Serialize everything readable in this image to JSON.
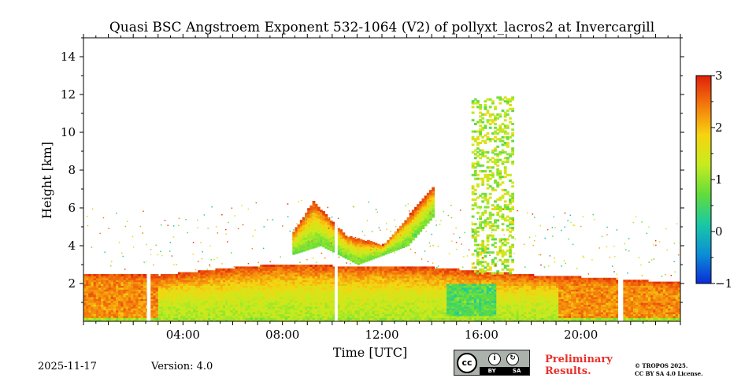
{
  "chart_data": {
    "type": "heatmap",
    "title": "Quasi BSC Angstroem Exponent 532-1064 (V2) of pollyxt_lacros2 at Invercargill",
    "xlabel": "Time [UTC]",
    "ylabel": "Height [km]",
    "xlim_hours": [
      0,
      24
    ],
    "ylim_km": [
      0,
      15
    ],
    "x_ticks": [
      {
        "hour": 4,
        "label": "04:00"
      },
      {
        "hour": 8,
        "label": "08:00"
      },
      {
        "hour": 12,
        "label": "12:00"
      },
      {
        "hour": 16,
        "label": "16:00"
      },
      {
        "hour": 20,
        "label": "20:00"
      }
    ],
    "y_ticks": [
      {
        "km": 2,
        "label": "2"
      },
      {
        "km": 4,
        "label": "4"
      },
      {
        "km": 6,
        "label": "6"
      },
      {
        "km": 8,
        "label": "8"
      },
      {
        "km": 10,
        "label": "10"
      },
      {
        "km": 12,
        "label": "12"
      },
      {
        "km": 14,
        "label": "14"
      }
    ],
    "colorbar": {
      "range": [
        -1,
        3
      ],
      "ticks": [
        {
          "value": 3,
          "label": "3"
        },
        {
          "value": 2,
          "label": "2"
        },
        {
          "value": 1,
          "label": "1"
        },
        {
          "value": 0,
          "label": "0"
        },
        {
          "value": -1,
          "label": "−1"
        }
      ],
      "colormap": "jet",
      "colors": [
        "#0a2bd8",
        "#0c8fd6",
        "#19c9a4",
        "#62dc3c",
        "#c6ec1e",
        "#f6d410",
        "#f47a0c",
        "#e0200a"
      ]
    },
    "data_gaps_hours": [
      [
        2.55,
        2.7
      ],
      [
        10.1,
        10.22
      ],
      [
        21.5,
        21.7
      ]
    ],
    "layers": [
      {
        "name": "boundary layer",
        "start_hour": 0,
        "end_hour": 24,
        "top_km_profile": [
          [
            0,
            2.5
          ],
          [
            3,
            2.4
          ],
          [
            6,
            2.8
          ],
          [
            8,
            3.0
          ],
          [
            10,
            2.9
          ],
          [
            12,
            2.9
          ],
          [
            14,
            2.8
          ],
          [
            16,
            2.6
          ],
          [
            18,
            2.4
          ],
          [
            20,
            2.3
          ],
          [
            24,
            2.0
          ]
        ],
        "values_low": 1.2,
        "values_high": 2.8
      },
      {
        "name": "elevated aerosol layer",
        "start_hour": 8.3,
        "end_hour": 14.0,
        "base_km_profile": [
          [
            8.3,
            3.5
          ],
          [
            9.5,
            4.0
          ],
          [
            11,
            3.0
          ],
          [
            13,
            4.0
          ],
          [
            14,
            5.5
          ]
        ],
        "top_km_profile": [
          [
            8.3,
            4.5
          ],
          [
            9.2,
            6.3
          ],
          [
            10.5,
            4.5
          ],
          [
            12,
            4.0
          ],
          [
            13,
            5.5
          ],
          [
            14,
            7.0
          ]
        ],
        "value": 1.5
      },
      {
        "name": "upper cloud column",
        "start_hour": 15.5,
        "end_hour": 17.2,
        "base_km": 2.5,
        "top_km": 11.8,
        "value": 1.2
      }
    ]
  },
  "footer": {
    "date": "2025-11-17",
    "version": "Version: 4.0",
    "preliminary_line1": "Preliminary",
    "preliminary_line2": "Results.",
    "copyright_line1": "© TROPOS 2025.",
    "copyright_line2": "CC BY SA 4.0 License.",
    "badge_cc": "cc",
    "badge_by": "BY",
    "badge_sa": "SA"
  }
}
